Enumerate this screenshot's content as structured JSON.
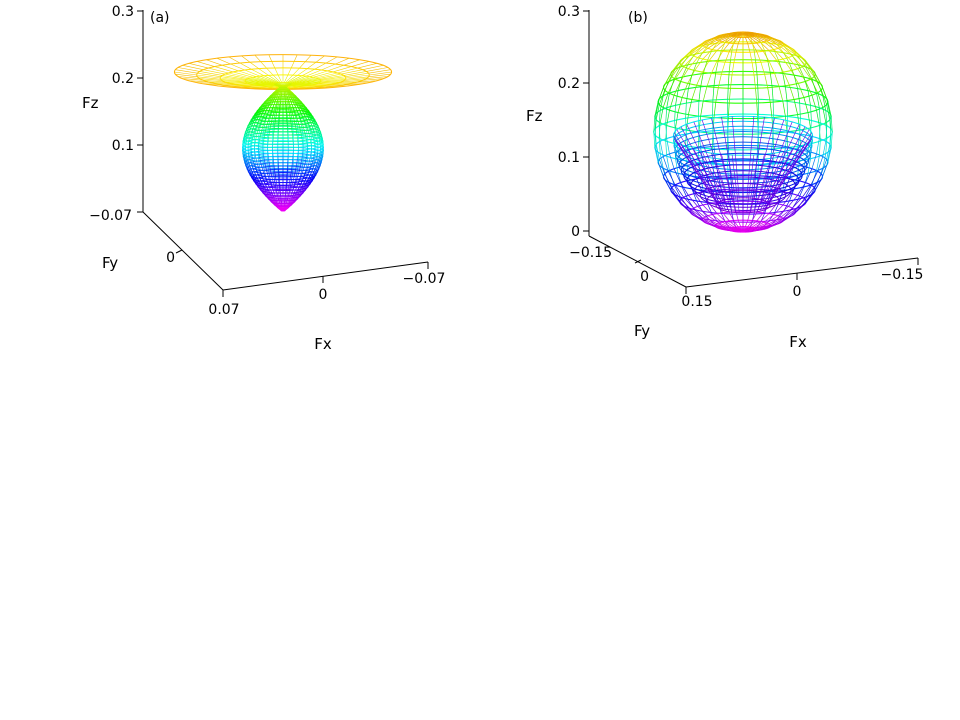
{
  "chart_data": [
    {
      "type": "surface3d",
      "panel_label": "(a)",
      "render_style": "wireframe",
      "colormap": "hsv",
      "xlabel": "Fx",
      "ylabel": "Fy",
      "zlabel": "Fz",
      "xlim": [
        -0.07,
        0.07
      ],
      "ylim": [
        -0.07,
        0.07
      ],
      "zlim": [
        0,
        0.3
      ],
      "x_ticks": [
        "0.07",
        "0",
        "−0.07"
      ],
      "y_ticks": [
        "−0.07",
        "0"
      ],
      "z_ticks": [
        "0.3",
        "0.2",
        "0.1"
      ],
      "surface": {
        "shape": "lobe with flared funnel top",
        "z_min": 0.0,
        "z_max": 0.23,
        "waist_z": 0.19,
        "flare_z": 0.21,
        "flare_radius": 0.07,
        "lobe_center_z": 0.13,
        "lobe_radius": 0.025
      }
    },
    {
      "type": "surface3d",
      "panel_label": "(b)",
      "render_style": "wireframe",
      "colormap": "hsv",
      "xlabel": "Fx",
      "ylabel": "Fy",
      "zlabel": "Fz",
      "xlim": [
        -0.15,
        0.15
      ],
      "ylim": [
        -0.15,
        0.15
      ],
      "zlim": [
        0,
        0.3
      ],
      "x_ticks": [
        "0.15",
        "0",
        "−0.15"
      ],
      "y_ticks": [
        "−0.15",
        "0",
        "0.15"
      ],
      "z_ticks": [
        "0.3",
        "0.2",
        "0.1",
        "0"
      ],
      "surface": {
        "shape": "closed sphere-like shell with inner lower cup",
        "z_min": 0.0,
        "z_max": 0.27,
        "center_z": 0.135,
        "radius": 0.085
      }
    }
  ]
}
